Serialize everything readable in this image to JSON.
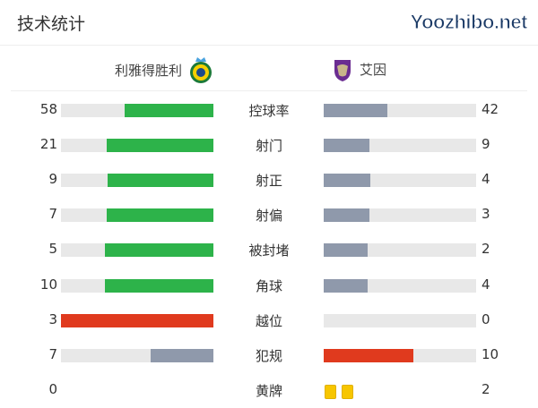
{
  "title": "技术统计",
  "home": {
    "name": "利雅得胜利",
    "logo": "al-nassr-crest-icon"
  },
  "away": {
    "name": "艾因",
    "logo": "al-ain-crest-icon"
  },
  "colors": {
    "green": "#2db34a",
    "gray": "#8f99ab",
    "red": "#e03a1e",
    "track": "#e8e8e8",
    "card": "#f7c600"
  },
  "stats": [
    {
      "label": "控球率",
      "home": "58",
      "away": "42",
      "hc": "green",
      "ac": "gray"
    },
    {
      "label": "射门",
      "home": "21",
      "away": "9",
      "hc": "green",
      "ac": "gray"
    },
    {
      "label": "射正",
      "home": "9",
      "away": "4",
      "hc": "green",
      "ac": "gray"
    },
    {
      "label": "射偏",
      "home": "7",
      "away": "3",
      "hc": "green",
      "ac": "gray"
    },
    {
      "label": "被封堵",
      "home": "5",
      "away": "2",
      "hc": "green",
      "ac": "gray"
    },
    {
      "label": "角球",
      "home": "10",
      "away": "4",
      "hc": "green",
      "ac": "gray"
    },
    {
      "label": "越位",
      "home": "3",
      "away": "0",
      "hc": "red",
      "ac": "gray"
    },
    {
      "label": "犯规",
      "home": "7",
      "away": "10",
      "hc": "gray",
      "ac": "red"
    }
  ],
  "yellow": {
    "label": "黄牌",
    "home": "0",
    "away": "2"
  },
  "watermark": "Yoozhibo.net"
}
